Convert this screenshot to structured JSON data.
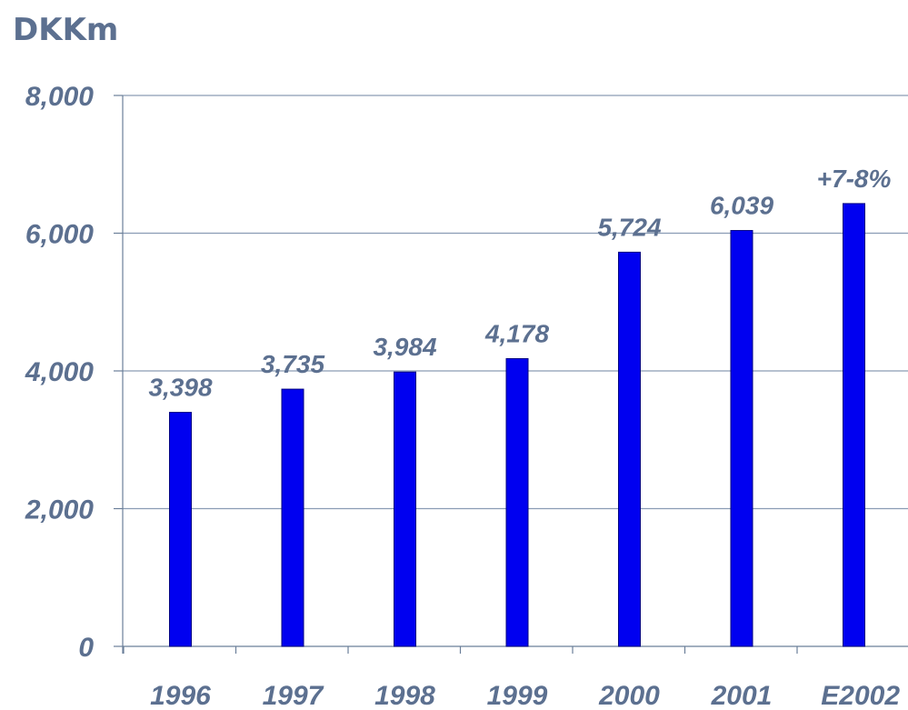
{
  "chart_data": {
    "type": "bar",
    "unit_label": "DKKm",
    "categories": [
      "1996",
      "1997",
      "1998",
      "1999",
      "2000",
      "2001",
      "E2002"
    ],
    "values": [
      3398,
      3735,
      3984,
      4178,
      5724,
      6039,
      6430
    ],
    "data_labels": [
      "3,398",
      "3,735",
      "3,984",
      "4,178",
      "5,724",
      "6,039",
      "+7-8%"
    ],
    "y_ticks": [
      0,
      2000,
      4000,
      6000,
      8000
    ],
    "y_tick_labels": [
      "0",
      "2,000",
      "4,000",
      "6,000",
      "8,000"
    ],
    "ylim": [
      0,
      8000
    ],
    "grid": true,
    "legend": "none"
  },
  "colors": {
    "bar": "#0000f0",
    "bar_edge": "#000080",
    "text": "#5c7090",
    "grid": "#8a9cb4",
    "axis": "#6b7f99"
  }
}
